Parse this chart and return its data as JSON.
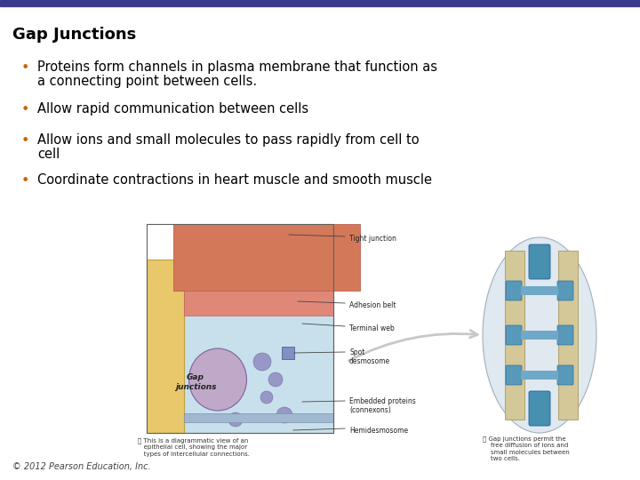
{
  "title": "Gap Junctions",
  "title_fontsize": 13,
  "bullet_color": "#CC6600",
  "text_color": "#000000",
  "background_color": "#FFFFFF",
  "header_bar_color": "#3A3A8C",
  "bullet_points": [
    "Proteins form channels in plasma membrane that function as\na connecting point between cells.",
    "Allow rapid communication between cells",
    "Allow ions and small molecules to pass rapidly from cell to\ncell",
    "Coordinate contractions in heart muscle and smooth muscle"
  ],
  "bullet_fontsize": 10.5,
  "footer_text": "© 2012 Pearson Education, Inc.",
  "footer_fontsize": 7,
  "img_left_labels": [
    [
      "Tight junction",
      0.895
    ],
    [
      "Adhesion belt",
      0.805
    ],
    [
      "Terminal web",
      0.735
    ],
    [
      "Spot\ndesmosome",
      0.67
    ],
    [
      "Embedded proteins\n(connexons)",
      0.545
    ],
    [
      "Hemidesmosome",
      0.468
    ]
  ],
  "img_left_caption": "Ⓐ This is a diagrammatic view of an\n   epithelial cell, showing the major\n   types of intercellular connections.",
  "img_right_caption": "Ⓑ Gap junctions permit the\n    free diffusion of ions and\n    small molecules between\n    two cells.",
  "gap_junctions_label": "Gap\njunctions"
}
